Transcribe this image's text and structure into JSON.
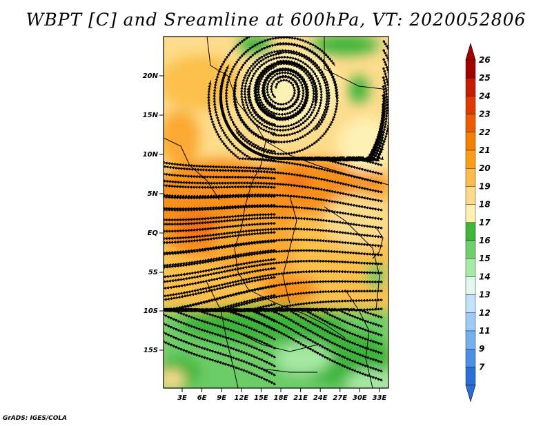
{
  "title": "WBPT [C] and Sreamline at 600hPa, VT: 2020052806",
  "footer": "GrADS: IGES/COLA",
  "lat_labels": [
    "20N",
    "15N",
    "10N",
    "5N",
    "EQ",
    "5S",
    "10S",
    "15S"
  ],
  "lon_labels": [
    "3E",
    "6E",
    "9E",
    "12E",
    "15E",
    "18E",
    "21E",
    "24E",
    "27E",
    "30E",
    "33E"
  ],
  "colorbar": {
    "levels": [
      "26",
      "25",
      "24",
      "23",
      "22",
      "21",
      "20",
      "19",
      "18",
      "17",
      "16",
      "15",
      "14",
      "13",
      "12",
      "11",
      "9",
      "7"
    ],
    "colors": [
      "#a50000",
      "#c81c00",
      "#e03a00",
      "#f05a00",
      "#f77f00",
      "#fb9d17",
      "#fcbc4a",
      "#fdd98a",
      "#fff0b0",
      "#3fb53a",
      "#6fd06a",
      "#a7eaa6",
      "#e0f8ee",
      "#c2e2fb",
      "#9ccbf5",
      "#74b0ee",
      "#4d8fe6",
      "#2a6fd8"
    ],
    "top_arrow_color": "#a50000",
    "bottom_arrow_color": "#2a6fd8"
  },
  "map_colors": {
    "very_warm": "#f2701e",
    "warm": "#f7901a",
    "mid_warm": "#fba930",
    "light_warm": "#fcc04c",
    "pale": "#fddc8c",
    "cream": "#fff0b4",
    "green_dark": "#3cb43a",
    "green": "#6ccc66",
    "green_light": "#a6e8a4",
    "boundary": "#000000"
  }
}
